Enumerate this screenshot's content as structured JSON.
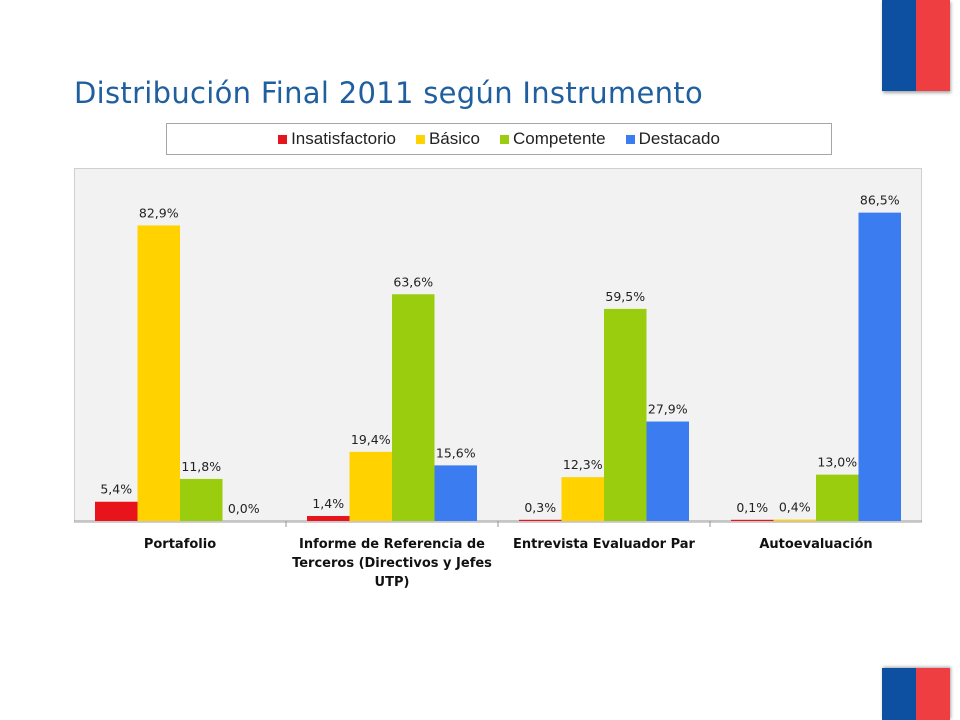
{
  "page": {
    "title": "Distribución Final 2011 según Instrumento"
  },
  "colors": {
    "flag_blue": "#0d4fa0",
    "flag_red": "#ef3e42",
    "title": "#1f5f9f",
    "plot_background": "#f2f2f2"
  },
  "chart_data": {
    "type": "bar",
    "title": "",
    "xlabel": "",
    "ylabel": "",
    "ylim": [
      0,
      100
    ],
    "grid": false,
    "legend_position": "top",
    "categories": [
      "Portafolio",
      "Informe de Referencia de Terceros (Directivos y Jefes UTP)",
      "Entrevista Evaluador Par",
      "Autoevaluación"
    ],
    "category_lines": [
      [
        "Portafolio"
      ],
      [
        "Informe de Referencia de",
        "Terceros (Directivos y Jefes",
        "UTP)"
      ],
      [
        "Entrevista Evaluador Par"
      ],
      [
        "Autoevaluación"
      ]
    ],
    "series": [
      {
        "name": "Insatisfactorio",
        "color": "#e8141b",
        "values": [
          5.4,
          1.4,
          0.3,
          0.1
        ],
        "labels": [
          "5,4%",
          "1,4%",
          "0,3%",
          "0,1%"
        ]
      },
      {
        "name": "Básico",
        "color": "#ffd200",
        "values": [
          82.9,
          19.4,
          12.3,
          0.4
        ],
        "labels": [
          "82,9%",
          "19,4%",
          "12,3%",
          "0,4%"
        ]
      },
      {
        "name": "Competente",
        "color": "#9acd0e",
        "values": [
          11.8,
          63.6,
          59.5,
          13.0
        ],
        "labels": [
          "11,8%",
          "63,6%",
          "59,5%",
          "13,0%"
        ]
      },
      {
        "name": "Destacado",
        "color": "#3b7df0",
        "values": [
          0.0,
          15.6,
          27.9,
          86.5
        ],
        "labels": [
          "0,0%",
          "15,6%",
          "27,9%",
          "86,5%"
        ]
      }
    ]
  }
}
